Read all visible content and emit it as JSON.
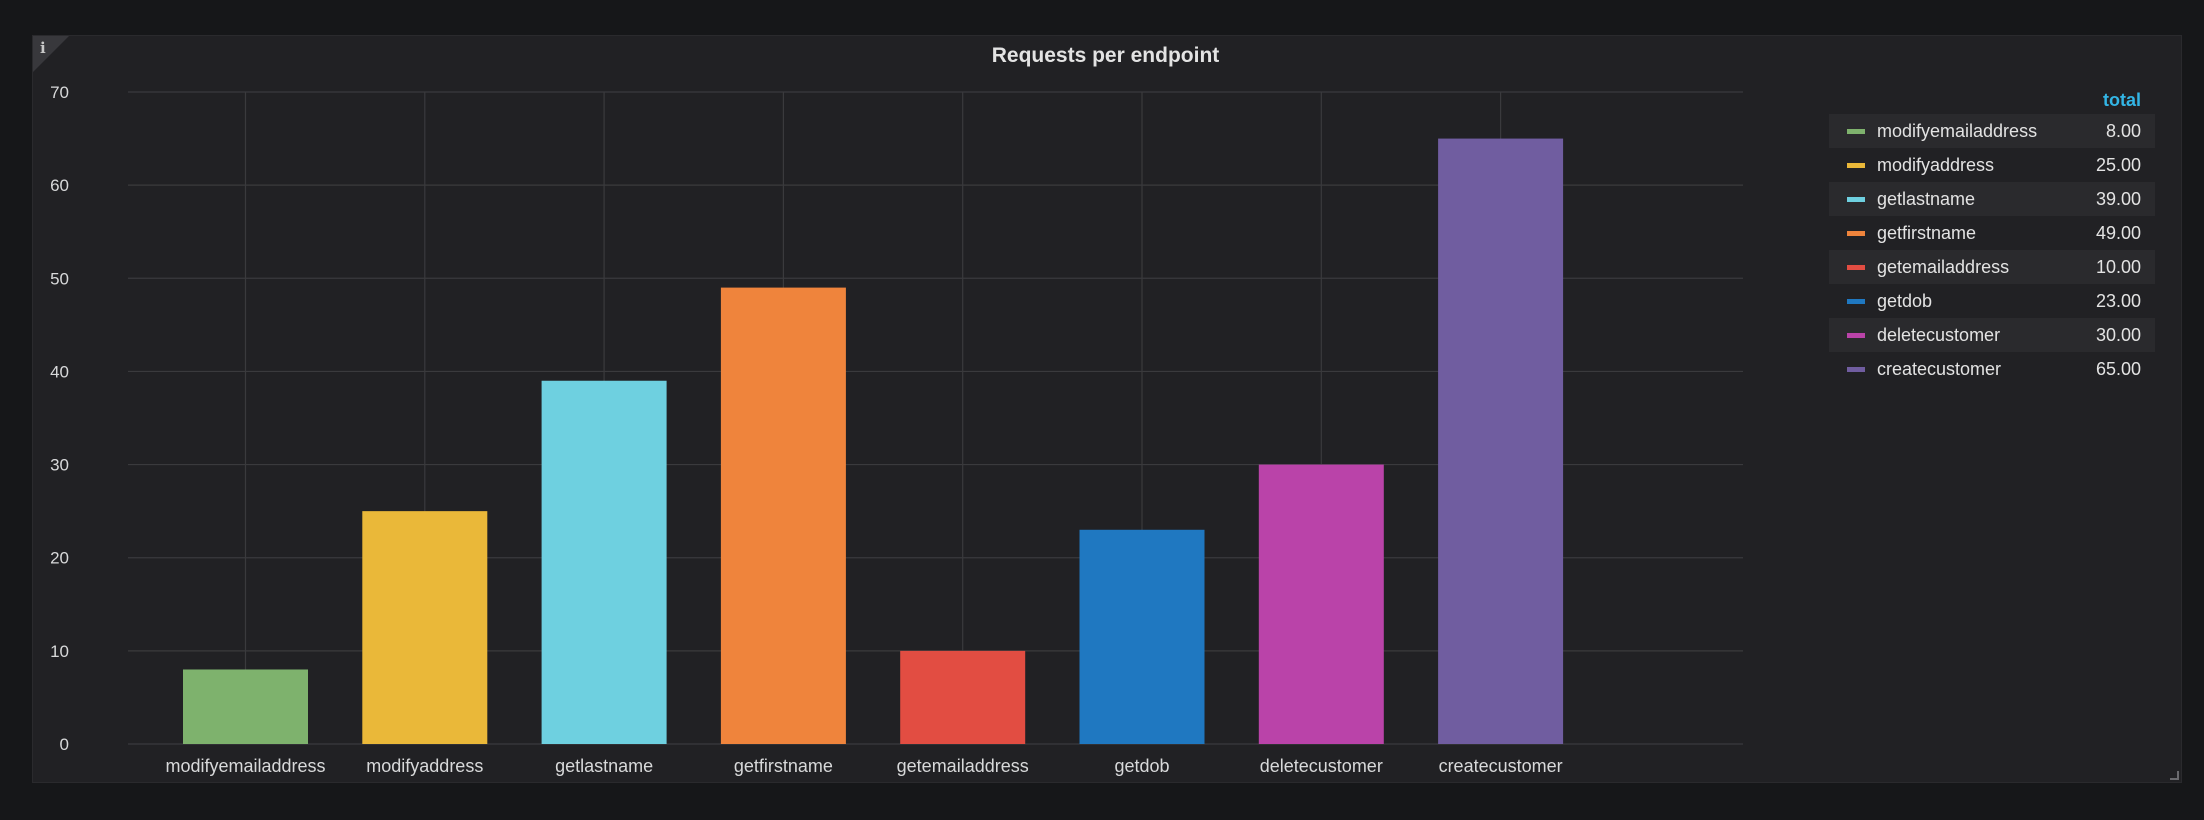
{
  "panel": {
    "title": "Requests per endpoint",
    "info_icon": "info-icon",
    "info_glyph": "i"
  },
  "legend": {
    "header": "total",
    "items": [
      {
        "name": "modifyemailaddress",
        "value": "8.00",
        "color": "#7eb26d"
      },
      {
        "name": "modifyaddress",
        "value": "25.00",
        "color": "#eab839"
      },
      {
        "name": "getlastname",
        "value": "39.00",
        "color": "#6ed0e0"
      },
      {
        "name": "getfirstname",
        "value": "49.00",
        "color": "#ef843c"
      },
      {
        "name": "getemailaddress",
        "value": "10.00",
        "color": "#e24d42"
      },
      {
        "name": "getdob",
        "value": "23.00",
        "color": "#1f78c1"
      },
      {
        "name": "deletecustomer",
        "value": "30.00",
        "color": "#ba43a9"
      },
      {
        "name": "createcustomer",
        "value": "65.00",
        "color": "#705da0"
      }
    ]
  },
  "chart_data": {
    "type": "bar",
    "title": "Requests per endpoint",
    "categories": [
      "modifyemailaddress",
      "modifyaddress",
      "getlastname",
      "getfirstname",
      "getemailaddress",
      "getdob",
      "deletecustomer",
      "createcustomer"
    ],
    "values": [
      8,
      25,
      39,
      49,
      10,
      23,
      30,
      65
    ],
    "colors": [
      "#7eb26d",
      "#eab839",
      "#6ed0e0",
      "#ef843c",
      "#e24d42",
      "#1f78c1",
      "#ba43a9",
      "#705da0"
    ],
    "ylim": [
      0,
      70
    ],
    "yticks": [
      0,
      10,
      20,
      30,
      40,
      50,
      60,
      70
    ],
    "grid": true,
    "legend_position": "right",
    "xlabel": "",
    "ylabel": ""
  }
}
